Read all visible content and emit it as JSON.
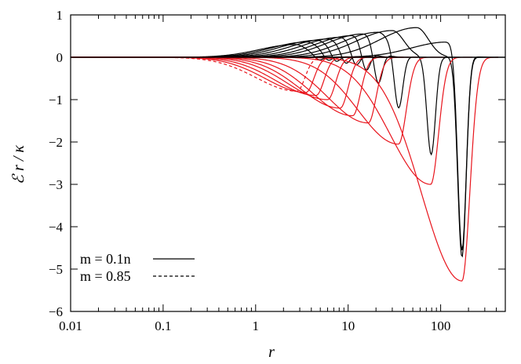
{
  "chart_data": {
    "type": "line",
    "title": "",
    "xlabel": "r",
    "ylabel": "ℰ r / κ",
    "x_scale": "log",
    "xlim": [
      0.01,
      500
    ],
    "ylim": [
      -6,
      1
    ],
    "x_ticks": [
      0.01,
      0.1,
      1,
      10,
      100
    ],
    "x_tick_labels": [
      "0.01",
      "0.1",
      "1",
      "10",
      "100"
    ],
    "y_ticks": [
      -6,
      -5,
      -4,
      -3,
      -2,
      -1,
      0,
      1
    ],
    "y_tick_labels": [
      "−6",
      "−5",
      "−4",
      "−3",
      "−2",
      "−1",
      "0",
      "1"
    ],
    "grid": false,
    "legend_position": "bottom-left",
    "legend": [
      {
        "label": "m = 0.1n",
        "style": "solid"
      },
      {
        "label": "m = 0.85",
        "style": "dashed"
      }
    ],
    "colors": {
      "black_family": "#000000",
      "red_family": "#e8141c"
    },
    "black_series": [
      {
        "style": "solid",
        "peak_x": 2.7,
        "peak_y": 0.3,
        "well_x": 4.8,
        "well_y": -0.1,
        "x_end": 8.0
      },
      {
        "style": "solid",
        "peak_x": 3.6,
        "peak_y": 0.36,
        "well_x": 6.0,
        "well_y": -0.14,
        "x_end": 12
      },
      {
        "style": "solid",
        "peak_x": 4.6,
        "peak_y": 0.4,
        "well_x": 7.3,
        "well_y": -0.2,
        "x_end": 16
      },
      {
        "style": "solid",
        "peak_x": 6.0,
        "peak_y": 0.43,
        "well_x": 9.3,
        "well_y": -0.27,
        "x_end": 20
      },
      {
        "style": "solid",
        "peak_x": 8.1,
        "peak_y": 0.47,
        "well_x": 12.0,
        "well_y": -0.36,
        "x_end": 26
      },
      {
        "style": "solid",
        "peak_x": 11,
        "peak_y": 0.51,
        "well_x": 15.5,
        "well_y": -0.55,
        "x_end": 34
      },
      {
        "style": "solid",
        "peak_x": 14.5,
        "peak_y": 0.55,
        "well_x": 21,
        "well_y": -0.85,
        "x_end": 45
      },
      {
        "style": "solid",
        "peak_x": 21,
        "peak_y": 0.59,
        "well_x": 35,
        "well_y": -1.32,
        "x_end": 70
      },
      {
        "style": "solid",
        "peak_x": 30,
        "peak_y": 0.63,
        "well_x": 79,
        "well_y": -2.3,
        "x_end": 160
      },
      {
        "style": "solid",
        "peak_x": 55,
        "peak_y": 0.7,
        "well_x": 170,
        "well_y": -4.72,
        "x_end": 320
      },
      {
        "style": "solid",
        "peak_x": 118,
        "peak_y": 0.36,
        "well_x": 170,
        "well_y": -4.72,
        "x_end": 420
      }
    ],
    "red_series": [
      {
        "style": "dashed",
        "well_x": 2.8,
        "well_y": -0.8,
        "x_end": 8
      },
      {
        "style": "solid",
        "well_x": 3.5,
        "well_y": -0.83,
        "x_end": 12
      },
      {
        "style": "solid",
        "well_x": 4.5,
        "well_y": -0.9,
        "x_end": 16
      },
      {
        "style": "solid",
        "well_x": 6.0,
        "well_y": -1.0,
        "x_end": 22
      },
      {
        "style": "solid",
        "well_x": 8.2,
        "well_y": -1.2,
        "x_end": 30
      },
      {
        "style": "solid",
        "well_x": 11.2,
        "well_y": -1.38,
        "x_end": 40
      },
      {
        "style": "solid",
        "well_x": 16.5,
        "well_y": -1.55,
        "x_end": 60
      },
      {
        "style": "solid",
        "well_x": 35,
        "well_y": -2.05,
        "x_end": 110
      },
      {
        "style": "solid",
        "well_x": 78,
        "well_y": -3.0,
        "x_end": 220
      },
      {
        "style": "solid",
        "well_x": 170,
        "well_y": -5.28,
        "x_end": 420
      }
    ]
  }
}
